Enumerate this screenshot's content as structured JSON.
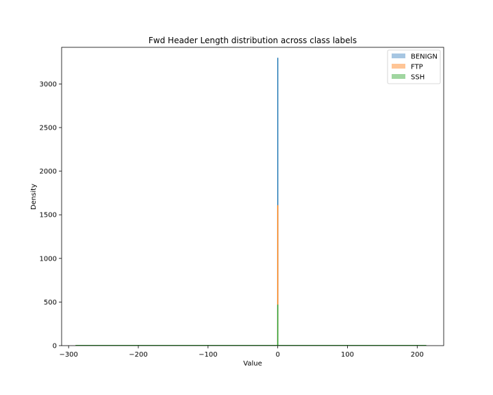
{
  "chart_data": {
    "type": "area",
    "title": "Fwd Header Length distribution across class labels",
    "xlabel": "Value",
    "ylabel": "Density",
    "xlim": [
      -310,
      238
    ],
    "ylim": [
      0,
      3420
    ],
    "xticks": [
      -300,
      -200,
      -100,
      0,
      100,
      200
    ],
    "xtick_labels": [
      "−300",
      "−200",
      "−100",
      "0",
      "100",
      "200"
    ],
    "yticks": [
      0,
      500,
      1000,
      1500,
      2000,
      2500,
      3000
    ],
    "ytick_labels": [
      "0",
      "500",
      "1000",
      "1500",
      "2000",
      "2500",
      "3000"
    ],
    "grid": false,
    "legend_position": "top-right",
    "x_range_span": [
      -290,
      213
    ],
    "series": [
      {
        "name": "BENIGN",
        "color": "#1f77b4",
        "fill_color": "#a6c6e2",
        "peak_x": 0,
        "peak_y": 3300
      },
      {
        "name": "FTP",
        "color": "#ff7f0e",
        "fill_color": "#ffc596",
        "peak_x": 0,
        "peak_y": 1610
      },
      {
        "name": "SSH",
        "color": "#2ca02c",
        "fill_color": "#a0d6a0",
        "peak_x": 0,
        "peak_y": 470
      }
    ]
  }
}
